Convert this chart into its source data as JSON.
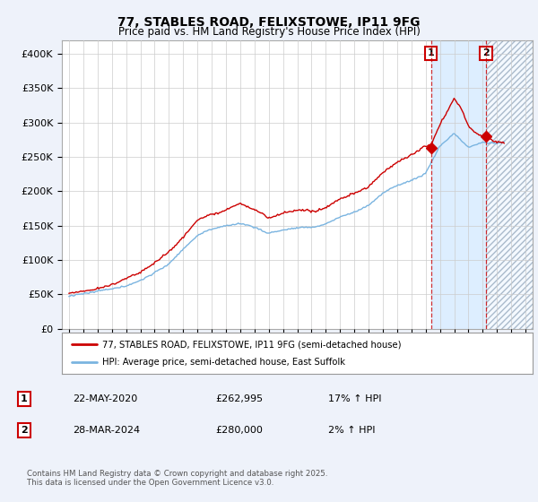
{
  "title_line1": "77, STABLES ROAD, FELIXSTOWE, IP11 9FG",
  "title_line2": "Price paid vs. HM Land Registry's House Price Index (HPI)",
  "ylim": [
    0,
    420000
  ],
  "yticks": [
    0,
    50000,
    100000,
    150000,
    200000,
    250000,
    300000,
    350000,
    400000
  ],
  "ytick_labels": [
    "£0",
    "£50K",
    "£100K",
    "£150K",
    "£200K",
    "£250K",
    "£300K",
    "£350K",
    "£400K"
  ],
  "xlim_year": [
    1994.5,
    2027.5
  ],
  "hpi_color": "#7ab4e0",
  "price_color": "#cc0000",
  "background_color": "#eef2fa",
  "plot_bg_color": "#ffffff",
  "grid_color": "#cccccc",
  "purchase1_year": 2020.38,
  "purchase1_price": 262995,
  "purchase2_year": 2024.24,
  "purchase2_price": 280000,
  "shade_color": "#ddeeff",
  "hatch_color": "#aabbcc",
  "legend_line1": "77, STABLES ROAD, FELIXSTOWE, IP11 9FG (semi-detached house)",
  "legend_line2": "HPI: Average price, semi-detached house, East Suffolk",
  "note1_label": "1",
  "note1_date": "22-MAY-2020",
  "note1_price": "£262,995",
  "note1_hpi": "17% ↑ HPI",
  "note2_label": "2",
  "note2_date": "28-MAR-2024",
  "note2_price": "£280,000",
  "note2_hpi": "2% ↑ HPI",
  "footer": "Contains HM Land Registry data © Crown copyright and database right 2025.\nThis data is licensed under the Open Government Licence v3.0."
}
